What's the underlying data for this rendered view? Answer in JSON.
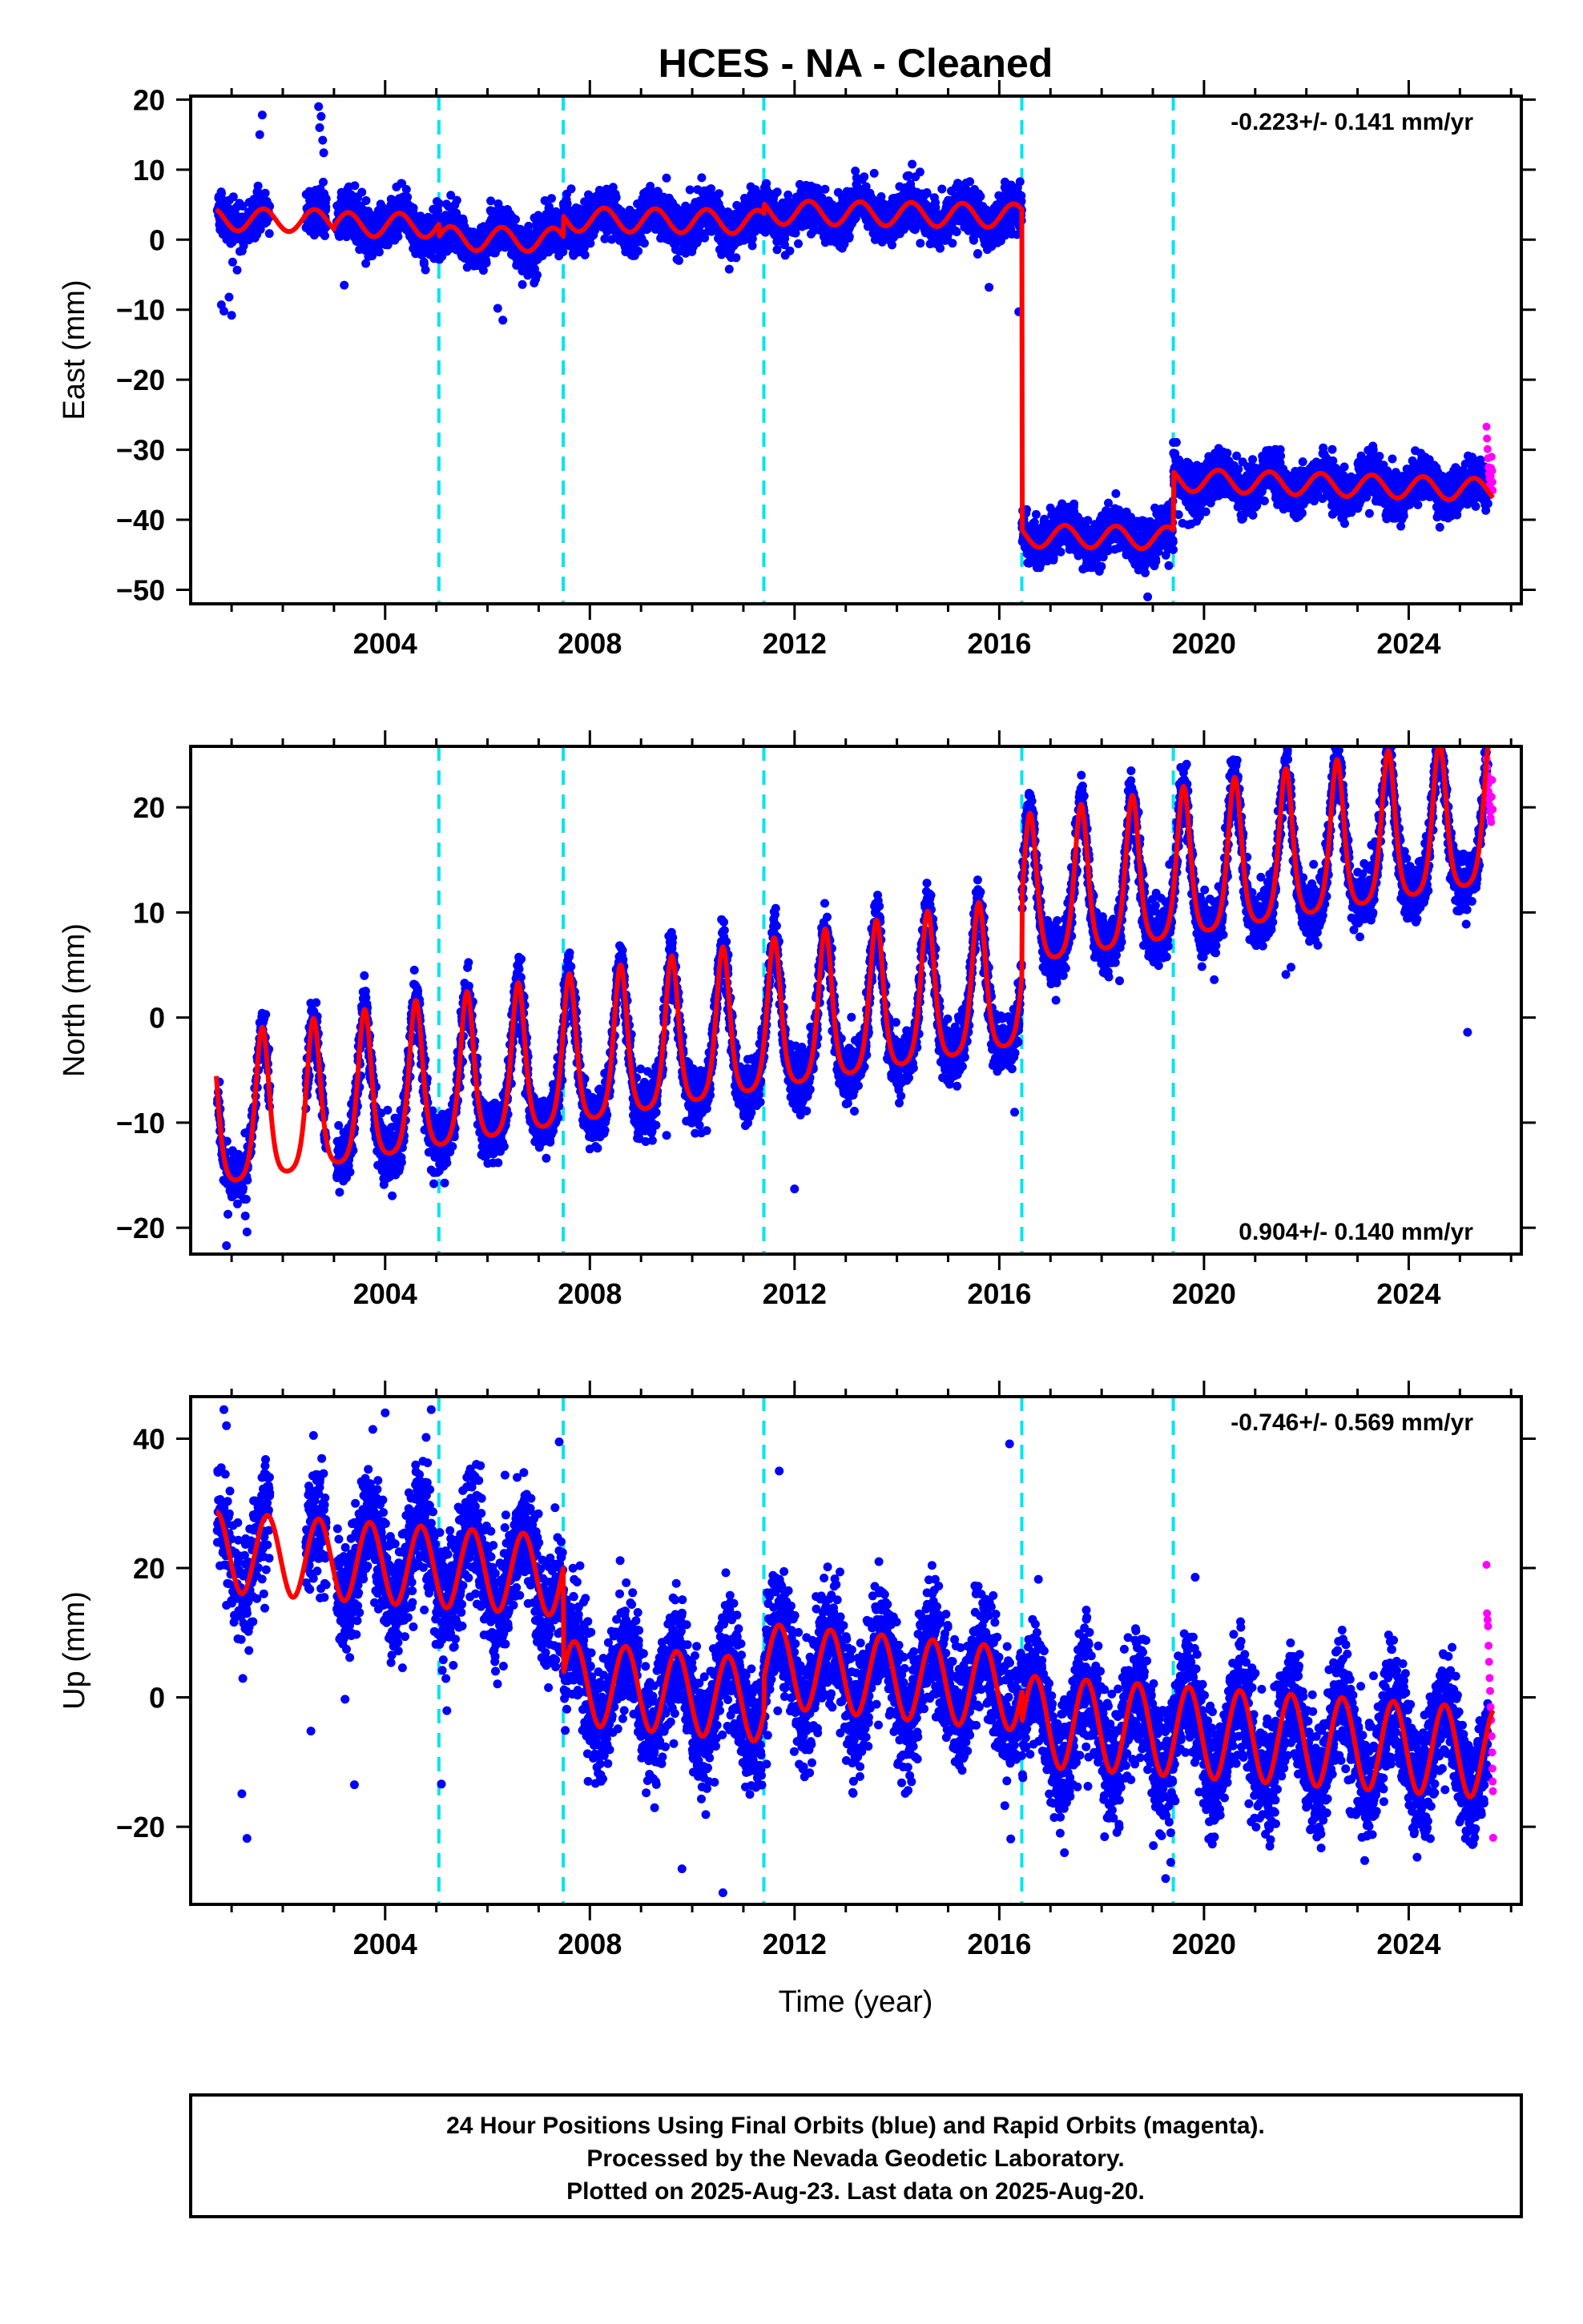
{
  "figure": {
    "title": "HCES  - NA - Cleaned",
    "xlabel": "Time (year)",
    "footer": {
      "line1": "24 Hour Positions Using Final Orbits (blue) and Rapid Orbits (magenta).",
      "line2": "Processed by the Nevada Geodetic Laboratory.",
      "line3": "Plotted on 2025-Aug-23. Last data on 2025-Aug-20."
    },
    "colors": {
      "final_orbits": "#0000ff",
      "rapid_orbits": "#ff00ff",
      "model": "#ff0000",
      "event_lines": "#00e5ee"
    }
  },
  "chart_data": [
    {
      "type": "scatter",
      "component": "east",
      "ylabel": "East (mm)",
      "rate_text": "-0.223+/- 0.141 mm/yr",
      "rate_position": "top-right",
      "xlim": [
        2000.2,
        2026.2
      ],
      "ylim": [
        -52,
        20.5
      ],
      "xticks": [
        2004,
        2008,
        2012,
        2016,
        2020,
        2024
      ],
      "xtick_labels": [
        "2004",
        "2008",
        "2012",
        "2016",
        "2020",
        "2024"
      ],
      "yticks": [
        20,
        10,
        0,
        -10,
        -20,
        -30,
        -40,
        -50
      ],
      "ytick_labels": [
        "20",
        "10",
        "0",
        "−10",
        "−20",
        "−30",
        "−40",
        "−50"
      ],
      "event_lines_x": [
        2005.05,
        2007.48,
        2011.4,
        2016.44,
        2019.4
      ],
      "model_segments": [
        {
          "x_start": 2000.7,
          "x_end": 2003.0,
          "offset": 2.9,
          "trend": -0.1,
          "amplitude": 1.6,
          "phase": 0.62,
          "sharp": false
        },
        {
          "x_start": 2003.0,
          "x_end": 2005.05,
          "offset": 2.2,
          "trend": -0.1,
          "amplitude": 1.7,
          "phase": 0.28,
          "sharp": false
        },
        {
          "x_start": 2005.05,
          "x_end": 2007.48,
          "offset": 0.2,
          "trend": -0.1,
          "amplitude": 1.7,
          "phase": 0.28,
          "sharp": false
        },
        {
          "x_start": 2007.48,
          "x_end": 2011.4,
          "offset": 2.9,
          "trend": -0.1,
          "amplitude": 1.7,
          "phase": 0.28,
          "sharp": false
        },
        {
          "x_start": 2011.4,
          "x_end": 2016.44,
          "offset": 3.9,
          "trend": -0.1,
          "amplitude": 1.7,
          "phase": 0.28,
          "sharp": false
        },
        {
          "x_start": 2016.44,
          "x_end": 2019.4,
          "offset": -42.3,
          "trend": -0.1,
          "amplitude": 1.6,
          "phase": 0.28,
          "sharp": false
        },
        {
          "x_start": 2019.4,
          "x_end": 2025.65,
          "offset": -34.3,
          "trend": -0.23,
          "amplitude": 1.6,
          "phase": 0.28,
          "sharp": false
        }
      ],
      "final_orbit_series": {
        "x_start": 2000.72,
        "x_end": 2025.55,
        "noise_sd": 1.6
      },
      "rapid_orbit_points": [
        [
          2025.52,
          -26.7
        ],
        [
          2025.53,
          -28.4
        ],
        [
          2025.54,
          -29.9
        ],
        [
          2025.55,
          -31.2
        ],
        [
          2025.56,
          -32.5
        ],
        [
          2025.57,
          -33.4
        ],
        [
          2025.58,
          -34.1
        ],
        [
          2025.59,
          -35.0
        ],
        [
          2025.6,
          -33.8
        ],
        [
          2025.61,
          -32.6
        ],
        [
          2025.62,
          -31.0
        ],
        [
          2025.63,
          -33.0
        ],
        [
          2025.635,
          -34.6
        ],
        [
          2025.64,
          -35.8
        ]
      ],
      "outliers": [
        [
          2000.8,
          -9.3
        ],
        [
          2000.85,
          -10.2
        ],
        [
          2001.0,
          -10.8
        ],
        [
          2000.95,
          -8.2
        ],
        [
          2001.6,
          17.8
        ],
        [
          2001.55,
          15.0
        ],
        [
          2002.7,
          19.0
        ],
        [
          2002.75,
          17.6
        ],
        [
          2002.72,
          16.0
        ],
        [
          2002.78,
          14.2
        ],
        [
          2002.8,
          12.4
        ],
        [
          2003.2,
          -6.5
        ],
        [
          2006.3,
          -11.5
        ],
        [
          2006.2,
          -9.8
        ],
        [
          2015.8,
          -6.8
        ],
        [
          2016.38,
          -10.3
        ],
        [
          2018.9,
          -51.0
        ]
      ]
    },
    {
      "type": "scatter",
      "component": "north",
      "ylabel": "North (mm)",
      "rate_text": "0.904+/- 0.140 mm/yr",
      "rate_position": "bottom-right",
      "xlim": [
        2000.2,
        2026.2
      ],
      "ylim": [
        -22.5,
        25.8
      ],
      "xticks": [
        2004,
        2008,
        2012,
        2016,
        2020,
        2024
      ],
      "xtick_labels": [
        "2004",
        "2008",
        "2012",
        "2016",
        "2020",
        "2024"
      ],
      "yticks": [
        20,
        10,
        0,
        -10,
        -20
      ],
      "ytick_labels": [
        "20",
        "10",
        "0",
        "−10",
        "−20"
      ],
      "event_lines_x": [
        2005.05,
        2007.48,
        2011.4,
        2016.44,
        2019.4
      ],
      "model_segments": [
        {
          "x_start": 2000.7,
          "x_end": 2016.44,
          "offset": -10.6,
          "trend": 0.85,
          "amplitude": 4.6,
          "phase": 0.6,
          "sharp": true
        },
        {
          "x_start": 2016.44,
          "x_end": 2025.65,
          "offset": 10.4,
          "trend": 0.85,
          "amplitude": 4.6,
          "phase": 0.6,
          "sharp": true
        }
      ],
      "final_orbit_series": {
        "x_start": 2000.72,
        "x_end": 2025.55,
        "noise_sd": 1.3
      },
      "rapid_orbit_points": [
        [
          2025.52,
          24.6
        ],
        [
          2025.53,
          23.8
        ],
        [
          2025.54,
          23.0
        ],
        [
          2025.55,
          22.2
        ],
        [
          2025.56,
          21.5
        ],
        [
          2025.57,
          20.8
        ],
        [
          2025.58,
          20.2
        ],
        [
          2025.59,
          19.6
        ],
        [
          2025.6,
          19.0
        ],
        [
          2025.61,
          18.6
        ],
        [
          2025.62,
          21.0
        ],
        [
          2025.63,
          22.6
        ],
        [
          2025.64,
          19.8
        ]
      ],
      "outliers": [
        [
          2000.9,
          -21.7
        ],
        [
          2001.3,
          -20.4
        ],
        [
          2002.6,
          0.2
        ],
        [
          2004.9,
          -14.5
        ],
        [
          2004.95,
          -15.8
        ],
        [
          2008.0,
          -12.5
        ],
        [
          2009.5,
          -11.2
        ],
        [
          2012.0,
          -16.3
        ],
        [
          2016.3,
          -9.0
        ],
        [
          2018.35,
          3.5
        ],
        [
          2019.95,
          5.8
        ],
        [
          2020.2,
          3.6
        ],
        [
          2021.6,
          4.1
        ],
        [
          2021.7,
          4.8
        ],
        [
          2025.15,
          -1.4
        ]
      ]
    },
    {
      "type": "scatter",
      "component": "up",
      "ylabel": "Up (mm)",
      "rate_text": "-0.746+/- 0.569 mm/yr",
      "rate_position": "top-right",
      "xlim": [
        2000.2,
        2026.2
      ],
      "ylim": [
        -32,
        46.5
      ],
      "xticks": [
        2004,
        2008,
        2012,
        2016,
        2020,
        2024
      ],
      "xtick_labels": [
        "2004",
        "2008",
        "2012",
        "2016",
        "2020",
        "2024"
      ],
      "yticks": [
        40,
        20,
        0,
        -20
      ],
      "ytick_labels": [
        "40",
        "20",
        "0",
        "−20"
      ],
      "event_lines_x": [
        2005.05,
        2007.48,
        2011.4,
        2016.44,
        2019.4
      ],
      "model_segments": [
        {
          "x_start": 2000.7,
          "x_end": 2007.48,
          "offset": 22.5,
          "trend": -0.55,
          "amplitude": 6.2,
          "phase": 0.7,
          "sharp": false
        },
        {
          "x_start": 2007.48,
          "x_end": 2011.4,
          "offset": 2.4,
          "trend": -0.75,
          "amplitude": 6.4,
          "phase": 0.7,
          "sharp": false
        },
        {
          "x_start": 2011.4,
          "x_end": 2016.44,
          "offset": 5.0,
          "trend": -0.75,
          "amplitude": 6.4,
          "phase": 0.7,
          "sharp": false
        },
        {
          "x_start": 2016.44,
          "x_end": 2025.65,
          "offset": -3.6,
          "trend": -0.55,
          "amplitude": 7.0,
          "phase": 0.7,
          "sharp": false
        }
      ],
      "final_orbit_series": {
        "x_start": 2000.72,
        "x_end": 2025.55,
        "noise_sd": 4.6
      },
      "rapid_orbit_points": [
        [
          2025.52,
          20.5
        ],
        [
          2025.53,
          13.0
        ],
        [
          2025.54,
          12.0
        ],
        [
          2025.55,
          11.0
        ],
        [
          2025.56,
          8.0
        ],
        [
          2025.57,
          5.5
        ],
        [
          2025.58,
          3.0
        ],
        [
          2025.59,
          1.0
        ],
        [
          2025.6,
          -1.5
        ],
        [
          2025.61,
          -3.5
        ],
        [
          2025.62,
          -6.0
        ],
        [
          2025.63,
          -8.5
        ],
        [
          2025.635,
          -11.0
        ],
        [
          2025.64,
          -13.0
        ],
        [
          2025.645,
          -14.5
        ],
        [
          2025.65,
          -21.7
        ]
      ],
      "outliers": [
        [
          2000.85,
          44.5
        ],
        [
          2000.9,
          42.0
        ],
        [
          2001.3,
          -21.8
        ],
        [
          2001.2,
          -14.9
        ],
        [
          2002.6,
          40.5
        ],
        [
          2002.55,
          -5.2
        ],
        [
          2003.4,
          -13.5
        ],
        [
          2004.0,
          44.0
        ],
        [
          2004.8,
          40.2
        ],
        [
          2004.9,
          44.5
        ],
        [
          2005.1,
          -13.4
        ],
        [
          2007.4,
          39.5
        ],
        [
          2011.7,
          35.0
        ],
        [
          2009.8,
          -26.5
        ],
        [
          2010.6,
          -30.2
        ],
        [
          2016.2,
          39.2
        ],
        [
          2017.7,
          13.5
        ],
        [
          2019.25,
          -28.0
        ],
        [
          2019.35,
          -25.5
        ],
        [
          2021.3,
          -22.0
        ]
      ]
    }
  ]
}
